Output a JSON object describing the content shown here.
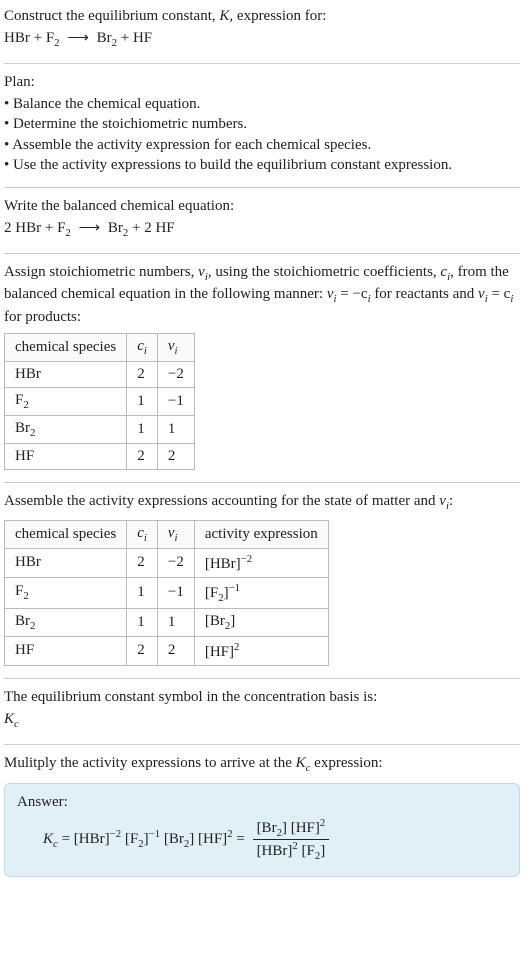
{
  "intro": {
    "line1_pre": "Construct the equilibrium constant, ",
    "line1_K": "K",
    "line1_post": ", expression for:",
    "equation_lhs_1": "HBr",
    "equation_lhs_2": "F",
    "equation_lhs_2_sub": "2",
    "equation_rhs_1": "Br",
    "equation_rhs_1_sub": "2",
    "equation_rhs_2": "HF"
  },
  "plan": {
    "heading": "Plan:",
    "items": [
      "Balance the chemical equation.",
      "Determine the stoichiometric numbers.",
      "Assemble the activity expression for each chemical species.",
      "Use the activity expressions to build the equilibrium constant expression."
    ]
  },
  "balanced": {
    "heading": "Write the balanced chemical equation:",
    "c1": "2 HBr",
    "c2": "F",
    "c2_sub": "2",
    "c3": "Br",
    "c3_sub": "2",
    "c4": "2 HF"
  },
  "assign": {
    "text_pre": "Assign stoichiometric numbers, ",
    "v": "ν",
    "vi_sub": "i",
    "text_mid1": ", using the stoichiometric coefficients, ",
    "c": "c",
    "ci_sub": "i",
    "text_mid2": ", from the balanced chemical equation in the following manner: ",
    "rel1": "ν",
    "rel1_sub": "i",
    "rel1_eq": " = −c",
    "rel1_c_sub": "i",
    "rel1_post": " for reactants and ",
    "rel2": "ν",
    "rel2_sub": "i",
    "rel2_eq": " = c",
    "rel2_c_sub": "i",
    "rel2_post": " for products:"
  },
  "table1": {
    "headers": {
      "species": "chemical species"
    },
    "rows": [
      {
        "species": "HBr",
        "species_sub": "",
        "ci": "2",
        "vi": "−2"
      },
      {
        "species": "F",
        "species_sub": "2",
        "ci": "1",
        "vi": "−1"
      },
      {
        "species": "Br",
        "species_sub": "2",
        "ci": "1",
        "vi": "1"
      },
      {
        "species": "HF",
        "species_sub": "",
        "ci": "2",
        "vi": "2"
      }
    ]
  },
  "assemble": {
    "text_pre": "Assemble the activity expressions accounting for the state of matter and ",
    "v": "ν",
    "v_sub": "i",
    "text_post": ":"
  },
  "table2": {
    "headers": {
      "species": "chemical species",
      "activity": "activity expression"
    },
    "rows": [
      {
        "species": "HBr",
        "species_sub": "",
        "ci": "2",
        "vi": "−2",
        "act_base": "[HBr]",
        "act_exp": "−2"
      },
      {
        "species": "F",
        "species_sub": "2",
        "ci": "1",
        "vi": "−1",
        "act_base": "[F",
        "act_base_sub": "2",
        "act_base_close": "]",
        "act_exp": "−1"
      },
      {
        "species": "Br",
        "species_sub": "2",
        "ci": "1",
        "vi": "1",
        "act_base": "[Br",
        "act_base_sub": "2",
        "act_base_close": "]",
        "act_exp": ""
      },
      {
        "species": "HF",
        "species_sub": "",
        "ci": "2",
        "vi": "2",
        "act_base": "[HF]",
        "act_exp": "2"
      }
    ]
  },
  "kc_basis": {
    "line1": "The equilibrium constant symbol in the concentration basis is:",
    "K": "K",
    "sub": "c"
  },
  "multiply": {
    "text_pre": "Mulitply the activity expressions to arrive at the ",
    "K": "K",
    "sub": "c",
    "text_post": " expression:"
  },
  "answer": {
    "title": "Answer:",
    "lhs_K": "K",
    "lhs_sub": "c",
    "eq": " = ",
    "term1_base": "[HBr]",
    "term1_exp": "−2",
    "term2_base_pre": "[F",
    "term2_base_sub": "2",
    "term2_base_post": "]",
    "term2_exp": "−1",
    "term3_base_pre": "[Br",
    "term3_base_sub": "2",
    "term3_base_post": "]",
    "term4_base": "[HF]",
    "term4_exp": "2",
    "eq2": " = ",
    "num_t1_pre": "[Br",
    "num_t1_sub": "2",
    "num_t1_post": "]",
    "num_t2_base": "[HF]",
    "num_t2_exp": "2",
    "den_t1_base": "[HBr]",
    "den_t1_exp": "2",
    "den_t2_pre": "[F",
    "den_t2_sub": "2",
    "den_t2_post": "]"
  },
  "style": {
    "arrow_glyph": "⟶"
  }
}
